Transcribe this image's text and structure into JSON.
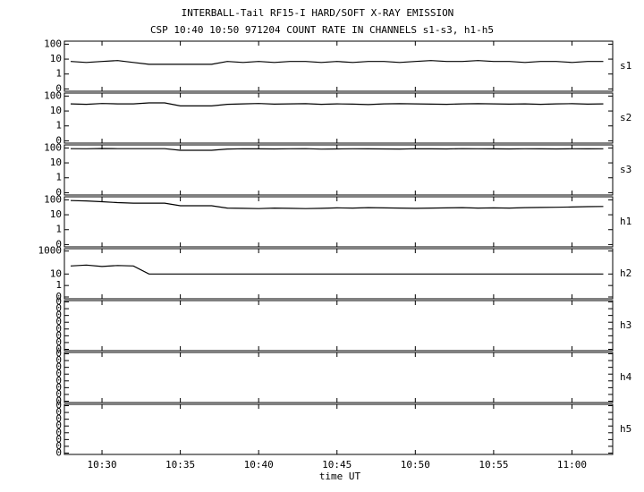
{
  "chart_data": [
    {
      "type": "line",
      "title": "INTERBALL-Tail RF15-I HARD/SOFT X-RAY EMISSION",
      "subtitle": "CSP 10:40 10:50 971204  COUNT RATE IN CHANNELS s1-s3, h1-h5",
      "panel_label": "s1",
      "yscale": "log",
      "color": "#000000",
      "ylim": [
        0.07,
        160
      ],
      "yticks": [
        100,
        10,
        1,
        {
          "value": 0.1,
          "label": "0"
        }
      ],
      "x": [
        "10:28",
        "10:29",
        "10:30",
        "10:31",
        "10:32",
        "10:33",
        "10:34",
        "10:35",
        "10:36",
        "10:37",
        "10:38",
        "10:39",
        "10:40",
        "10:41",
        "10:42",
        "10:43",
        "10:44",
        "10:45",
        "10:46",
        "10:47",
        "10:48",
        "10:49",
        "10:50",
        "10:51",
        "10:52",
        "10:53",
        "10:54",
        "10:55",
        "10:56",
        "10:57",
        "10:58",
        "10:59",
        "11:00",
        "11:01",
        "11:02"
      ],
      "values": [
        7,
        6,
        7,
        8,
        6,
        4.5,
        4.5,
        4.5,
        4.5,
        4.5,
        7,
        6,
        7,
        6,
        7,
        7,
        6,
        7,
        6,
        7,
        7,
        6,
        7,
        8,
        7,
        7,
        8,
        7,
        7,
        6,
        7,
        7,
        6,
        7,
        7
      ]
    },
    {
      "type": "line",
      "panel_label": "s2",
      "yscale": "log",
      "color": "#000000",
      "ylim": [
        0.07,
        160
      ],
      "yticks": [
        100,
        10,
        1,
        {
          "value": 0.1,
          "label": "0"
        }
      ],
      "x": [
        "10:28",
        "10:29",
        "10:30",
        "10:31",
        "10:32",
        "10:33",
        "10:34",
        "10:35",
        "10:36",
        "10:37",
        "10:38",
        "10:39",
        "10:40",
        "10:41",
        "10:42",
        "10:43",
        "10:44",
        "10:45",
        "10:46",
        "10:47",
        "10:48",
        "10:49",
        "10:50",
        "10:51",
        "10:52",
        "10:53",
        "10:54",
        "10:55",
        "10:56",
        "10:57",
        "10:58",
        "10:59",
        "11:00",
        "11:01",
        "11:02"
      ],
      "values": [
        30,
        28,
        32,
        30,
        30,
        35,
        35,
        22,
        22,
        22,
        28,
        30,
        32,
        29,
        30,
        31,
        28,
        30,
        29,
        27,
        30,
        31,
        30,
        29,
        28,
        30,
        31,
        30,
        29,
        30,
        28,
        30,
        31,
        29,
        30
      ]
    },
    {
      "type": "line",
      "panel_label": "s3",
      "yscale": "log",
      "color": "#000000",
      "ylim": [
        0.07,
        160
      ],
      "yticks": [
        100,
        10,
        1,
        {
          "value": 0.1,
          "label": "0"
        }
      ],
      "x": [
        "10:28",
        "10:29",
        "10:30",
        "10:31",
        "10:32",
        "10:33",
        "10:34",
        "10:35",
        "10:36",
        "10:37",
        "10:38",
        "10:39",
        "10:40",
        "10:41",
        "10:42",
        "10:43",
        "10:44",
        "10:45",
        "10:46",
        "10:47",
        "10:48",
        "10:49",
        "10:50",
        "10:51",
        "10:52",
        "10:53",
        "10:54",
        "10:55",
        "10:56",
        "10:57",
        "10:58",
        "10:59",
        "11:00",
        "11:01",
        "11:02"
      ],
      "values": [
        90,
        88,
        92,
        90,
        90,
        90,
        90,
        70,
        70,
        70,
        85,
        88,
        87,
        86,
        88,
        90,
        84,
        86,
        88,
        87,
        86,
        85,
        88,
        87,
        86,
        89,
        88,
        87,
        86,
        88,
        87,
        86,
        88,
        87,
        88
      ]
    },
    {
      "type": "line",
      "panel_label": "h1",
      "yscale": "log",
      "color": "#000000",
      "ylim": [
        0.07,
        160
      ],
      "yticks": [
        100,
        10,
        1,
        {
          "value": 0.1,
          "label": "0"
        }
      ],
      "x": [
        "10:28",
        "10:29",
        "10:30",
        "10:31",
        "10:32",
        "10:33",
        "10:34",
        "10:35",
        "10:36",
        "10:37",
        "10:38",
        "10:39",
        "10:40",
        "10:41",
        "10:42",
        "10:43",
        "10:44",
        "10:45",
        "10:46",
        "10:47",
        "10:48",
        "10:49",
        "10:50",
        "10:51",
        "10:52",
        "10:53",
        "10:54",
        "10:55",
        "10:56",
        "10:57",
        "10:58",
        "10:59",
        "11:00",
        "11:01",
        "11:02"
      ],
      "values": [
        90,
        85,
        75,
        65,
        60,
        60,
        60,
        40,
        40,
        40,
        28,
        27,
        26,
        28,
        27,
        26,
        27,
        29,
        28,
        30,
        29,
        28,
        27,
        28,
        29,
        30,
        28,
        29,
        28,
        30,
        31,
        32,
        33,
        35,
        36
      ]
    },
    {
      "type": "line",
      "panel_label": "h2",
      "yscale": "log",
      "color": "#000000",
      "ylim": [
        0.07,
        1600
      ],
      "yticks": [
        1000,
        10,
        1,
        {
          "value": 0.1,
          "label": "0"
        }
      ],
      "x": [
        "10:28",
        "10:29",
        "10:30",
        "10:31",
        "10:32",
        "10:33",
        "10:34",
        "10:35",
        "10:36",
        "10:37",
        "10:38",
        "10:39",
        "10:40",
        "10:41",
        "10:42",
        "10:43",
        "10:44",
        "10:45",
        "10:46",
        "10:47",
        "10:48",
        "10:49",
        "10:50",
        "10:51",
        "10:52",
        "10:53",
        "10:54",
        "10:55",
        "10:56",
        "10:57",
        "10:58",
        "10:59",
        "11:00",
        "11:01",
        "11:02"
      ],
      "values": [
        50,
        60,
        45,
        55,
        50,
        10,
        10,
        10,
        10,
        10,
        10,
        10,
        10,
        10,
        10,
        10,
        10,
        10,
        10,
        10,
        10,
        10,
        10,
        10,
        10,
        10,
        10,
        10,
        10,
        10,
        10,
        10,
        10,
        10,
        10
      ]
    },
    {
      "type": "line",
      "panel_label": "h3",
      "yscale": "linear",
      "ylim": [
        -0.01,
        0.36
      ],
      "yticks": [
        {
          "value": 0,
          "label": "0"
        },
        {
          "value": 0.05,
          "label": "0"
        },
        {
          "value": 0.1,
          "label": "0"
        },
        {
          "value": 0.15,
          "label": "0"
        },
        {
          "value": 0.2,
          "label": "0"
        },
        {
          "value": 0.25,
          "label": "0"
        },
        {
          "value": 0.3,
          "label": "0"
        },
        {
          "value": 0.35,
          "label": "0"
        }
      ]
    },
    {
      "type": "line",
      "panel_label": "h4",
      "yscale": "linear",
      "ylim": [
        -0.01,
        0.36
      ],
      "yticks": [
        {
          "value": 0,
          "label": "0"
        },
        {
          "value": 0.05,
          "label": "0"
        },
        {
          "value": 0.1,
          "label": "0"
        },
        {
          "value": 0.15,
          "label": "0"
        },
        {
          "value": 0.2,
          "label": "0"
        },
        {
          "value": 0.25,
          "label": "0"
        },
        {
          "value": 0.3,
          "label": "0"
        },
        {
          "value": 0.35,
          "label": "0"
        }
      ]
    },
    {
      "type": "line",
      "panel_label": "h5",
      "yscale": "linear",
      "xlabel": "time UT",
      "ylim": [
        -0.01,
        0.36
      ],
      "yticks": [
        {
          "value": 0,
          "label": "0"
        },
        {
          "value": 0.05,
          "label": "0"
        },
        {
          "value": 0.1,
          "label": "0"
        },
        {
          "value": 0.15,
          "label": "0"
        },
        {
          "value": 0.2,
          "label": "0"
        },
        {
          "value": 0.25,
          "label": "0"
        },
        {
          "value": 0.3,
          "label": "0"
        },
        {
          "value": 0.35,
          "label": "0"
        }
      ],
      "xlim": [
        "10:27:36",
        "11:02:36"
      ],
      "xticks": [
        "10:30",
        "10:35",
        "10:40",
        "10:45",
        "10:50",
        "10:55",
        "11:00"
      ]
    }
  ]
}
